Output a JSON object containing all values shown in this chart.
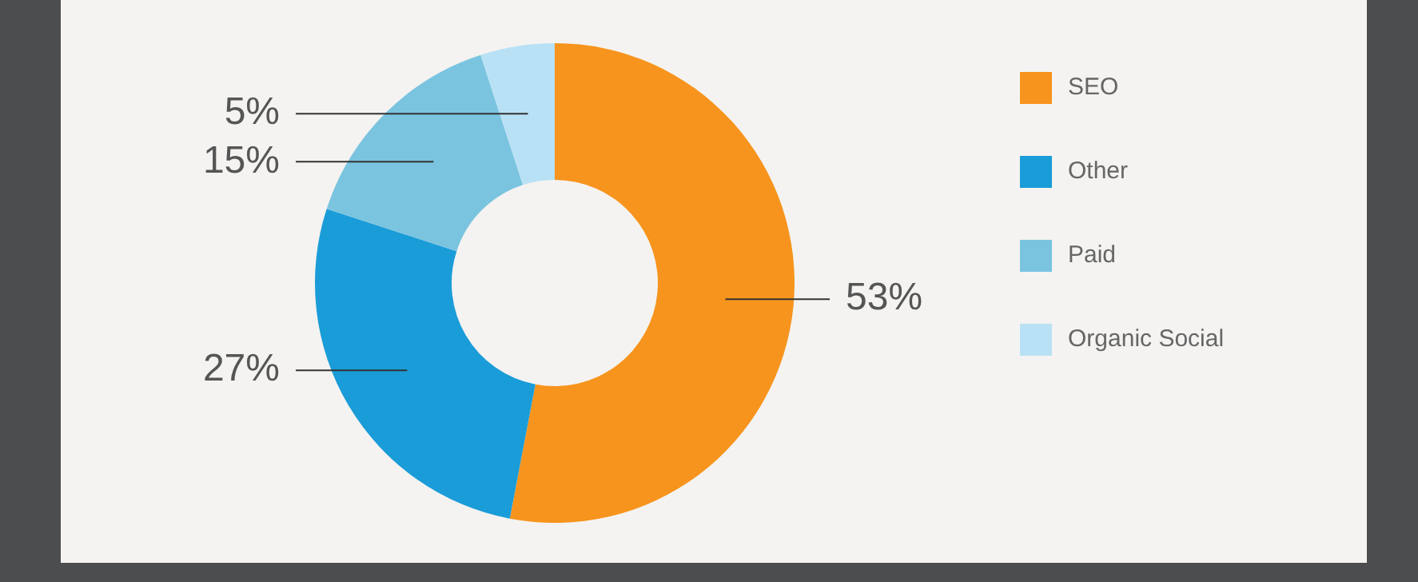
{
  "chart_data": {
    "type": "donut",
    "categories": [
      "SEO",
      "Other",
      "Paid",
      "Organic Social"
    ],
    "values": [
      53,
      27,
      15,
      5
    ],
    "colors": [
      "#f7941d",
      "#1a9cd8",
      "#7ac4e0",
      "#b9e1f5"
    ],
    "value_labels": [
      "53%",
      "27%",
      "15%",
      "5%"
    ],
    "legend": "right"
  }
}
